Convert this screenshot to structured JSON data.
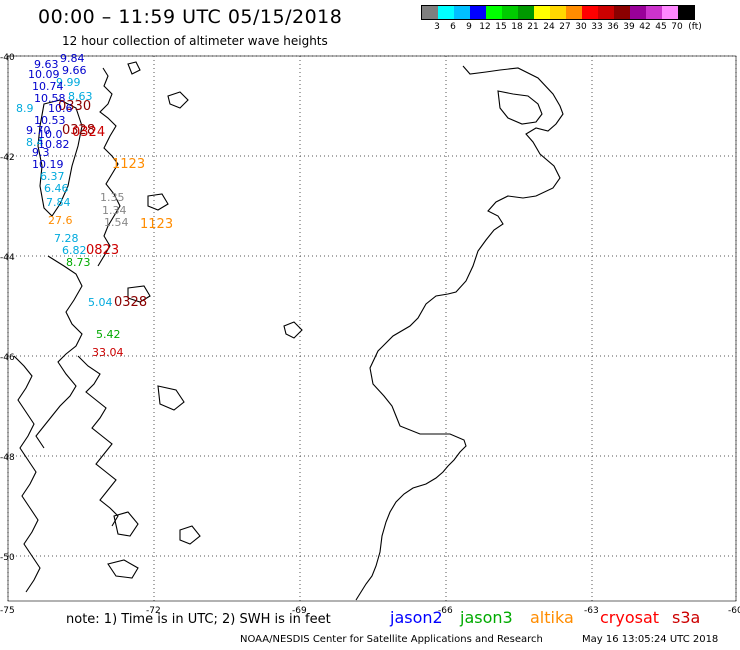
{
  "header": {
    "title": "00:00 – 11:59 UTC 05/15/2018",
    "subtitle": "12 hour collection of altimeter wave heights"
  },
  "legend": {
    "unit_label": "(ft)",
    "bins": [
      {
        "label": "3",
        "color": "#7f7f7f"
      },
      {
        "label": "6",
        "color": "#00ffff"
      },
      {
        "label": "9",
        "color": "#00bfff"
      },
      {
        "label": "12",
        "color": "#0000ff"
      },
      {
        "label": "15",
        "color": "#00ff00"
      },
      {
        "label": "18",
        "color": "#00cc00"
      },
      {
        "label": "21",
        "color": "#009900"
      },
      {
        "label": "24",
        "color": "#ffff00"
      },
      {
        "label": "27",
        "color": "#ffd700"
      },
      {
        "label": "30",
        "color": "#ff8c00"
      },
      {
        "label": "33",
        "color": "#ff0000"
      },
      {
        "label": "36",
        "color": "#cc0000"
      },
      {
        "label": "39",
        "color": "#8b0000"
      },
      {
        "label": "42",
        "color": "#990099"
      },
      {
        "label": "45",
        "color": "#cc33cc"
      },
      {
        "label": "70",
        "color": "#ff88ff"
      },
      {
        "label": "",
        "color": "#000000"
      }
    ]
  },
  "map": {
    "lat_labels": [
      "-40",
      "-42",
      "-44",
      "-46",
      "-48",
      "-50"
    ],
    "lon_labels": [
      "-75",
      "-72",
      "-69",
      "-66",
      "-63",
      "-60"
    ]
  },
  "observations": [
    {
      "text": "9.84",
      "color": "#0000cc"
    },
    {
      "text": "9.63",
      "color": "#0000cc"
    },
    {
      "text": "9.66",
      "color": "#0000cc"
    },
    {
      "text": "10.09",
      "color": "#0000cc"
    },
    {
      "text": "9.99",
      "color": "#00aadd"
    },
    {
      "text": "10.74",
      "color": "#0000cc"
    },
    {
      "text": "10.58",
      "color": "#0000cc"
    },
    {
      "text": "8.63",
      "color": "#00aadd"
    },
    {
      "text": "0330",
      "color": "#8b0000"
    },
    {
      "text": "10.6",
      "color": "#0000cc"
    },
    {
      "text": "8.9",
      "color": "#00aadd"
    },
    {
      "text": "10.53",
      "color": "#0000cc"
    },
    {
      "text": "9.70",
      "color": "#0000cc"
    },
    {
      "text": "10.0",
      "color": "#0000cc"
    },
    {
      "text": "0328",
      "color": "#8b0000"
    },
    {
      "text": "0324",
      "color": "#cc0000"
    },
    {
      "text": "8.4",
      "color": "#00aadd"
    },
    {
      "text": "10.82",
      "color": "#0000cc"
    },
    {
      "text": "9.3",
      "color": "#0000cc"
    },
    {
      "text": "10.19",
      "color": "#0000cc"
    },
    {
      "text": "6.37",
      "color": "#00aadd"
    },
    {
      "text": "6.46",
      "color": "#00aadd"
    },
    {
      "text": "7.84",
      "color": "#00aadd"
    },
    {
      "text": "1.35",
      "color": "#888888"
    },
    {
      "text": "1.34",
      "color": "#888888"
    },
    {
      "text": "1.54",
      "color": "#888888"
    },
    {
      "text": "27.6",
      "color": "#ff8c00"
    },
    {
      "text": "1123",
      "color": "#ff8c00"
    },
    {
      "text": "1123",
      "color": "#ff8c00"
    },
    {
      "text": "7.28",
      "color": "#00aadd"
    },
    {
      "text": "6.82",
      "color": "#00aadd"
    },
    {
      "text": "0823",
      "color": "#cc0000"
    },
    {
      "text": "8.73",
      "color": "#00aa00"
    },
    {
      "text": "5.04",
      "color": "#00aadd"
    },
    {
      "text": "0328",
      "color": "#8b0000"
    },
    {
      "text": "5.42",
      "color": "#00aa00"
    },
    {
      "text": "33.04",
      "color": "#cc0000"
    }
  ],
  "footer": {
    "note": "note:  1) Time is in UTC;  2) SWH is in feet",
    "satellites": [
      {
        "name": "jason2",
        "color": "#0000ff"
      },
      {
        "name": "jason3",
        "color": "#00aa00"
      },
      {
        "name": "altika",
        "color": "#ff8c00"
      },
      {
        "name": "cryosat",
        "color": "#ff0000"
      },
      {
        "name": "s3a",
        "color": "#cc0000"
      }
    ],
    "credit": "NOAA/NESDIS Center for Satellite Applications and Research",
    "timestamp": "May 16 13:05:24 UTC 2018"
  }
}
